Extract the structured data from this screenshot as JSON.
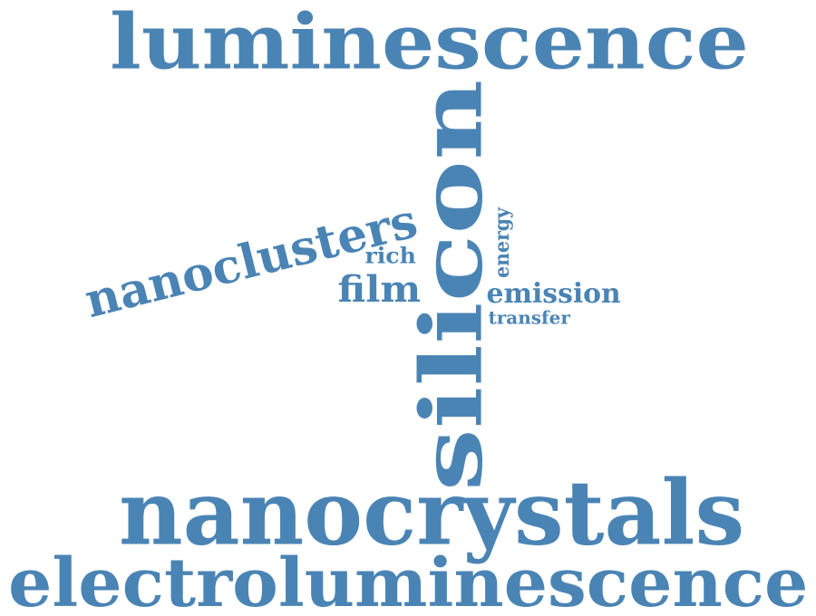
{
  "palette": {
    "word_color": "#4a84b5",
    "background": "#ffffff"
  },
  "words": [
    {
      "id": "luminescence",
      "text": "luminescence"
    },
    {
      "id": "silicon",
      "text": "silicon"
    },
    {
      "id": "nanocrystals",
      "text": "nanocrystals"
    },
    {
      "id": "electroluminescence",
      "text": "electroluminescence"
    },
    {
      "id": "nanoclusters",
      "text": "nanoclusters"
    },
    {
      "id": "film",
      "text": "film"
    },
    {
      "id": "rich",
      "text": "rich"
    },
    {
      "id": "emission",
      "text": "emission"
    },
    {
      "id": "energy",
      "text": "energy"
    },
    {
      "id": "transfer",
      "text": "transfer"
    }
  ]
}
